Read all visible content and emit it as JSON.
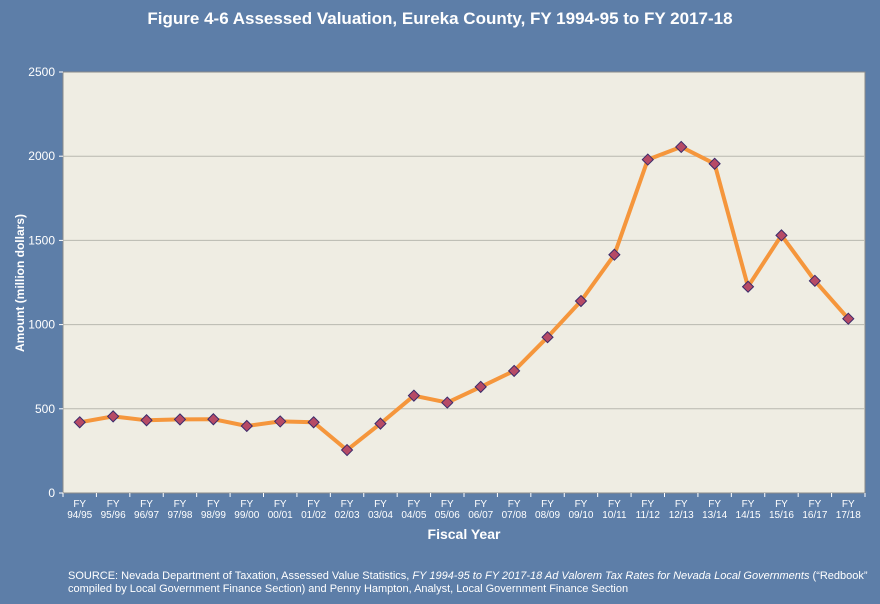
{
  "title": "Figure 4-6 Assessed Valuation, Eureka County, FY 1994-95 to FY 2017-18",
  "source": {
    "prefix": "SOURCE: Nevada Department of Taxation, Assessed Value Statistics, ",
    "italic_1": "FY 1994-95 to FY 2017-18  Ad Valorem Tax Rates for Nevada Local Governments",
    "suffix": " (“Redbook” compiled by Local Government Finance Section) and Penny Hampton, Analyst, Local Government Finance Section"
  },
  "colors": {
    "background": "#5d7ea8",
    "plot_area": "#efede3",
    "line": "#f5963c",
    "marker": "#b64a66",
    "marker_edge": "#3a2a6a"
  },
  "chart_data": {
    "type": "line",
    "xlabel": "Fiscal Year",
    "ylabel": "Amount (million dollars)",
    "ylim": [
      0,
      2500
    ],
    "yticks": [
      0,
      500,
      1000,
      1500,
      2000,
      2500
    ],
    "grid": true,
    "categories": [
      [
        "FY",
        "94/95"
      ],
      [
        "FY",
        "95/96"
      ],
      [
        "FY",
        "96/97"
      ],
      [
        "FY",
        "97/98"
      ],
      [
        "FY",
        "98/99"
      ],
      [
        "FY",
        "99/00"
      ],
      [
        "FY",
        "00/01"
      ],
      [
        "FY",
        "01/02"
      ],
      [
        "FY",
        "02/03"
      ],
      [
        "FY",
        "03/04"
      ],
      [
        "FY",
        "04/05"
      ],
      [
        "FY",
        "05/06"
      ],
      [
        "FY",
        "06/07"
      ],
      [
        "FY",
        "07/08"
      ],
      [
        "FY",
        "08/09"
      ],
      [
        "FY",
        "09/10"
      ],
      [
        "FY",
        "10/11"
      ],
      [
        "FY",
        "11/12"
      ],
      [
        "FY",
        "12/13"
      ],
      [
        "FY",
        "13/14"
      ],
      [
        "FY",
        "14/15"
      ],
      [
        "FY",
        "15/16"
      ],
      [
        "FY",
        "16/17"
      ],
      [
        "FY",
        "17/18"
      ]
    ],
    "series": [
      {
        "values": [
          420,
          455,
          432,
          437,
          438,
          398,
          425,
          420,
          255,
          412,
          578,
          537,
          630,
          725,
          925,
          1140,
          1415,
          1980,
          2055,
          1955,
          1225,
          1530,
          1260,
          1035
        ]
      }
    ]
  }
}
